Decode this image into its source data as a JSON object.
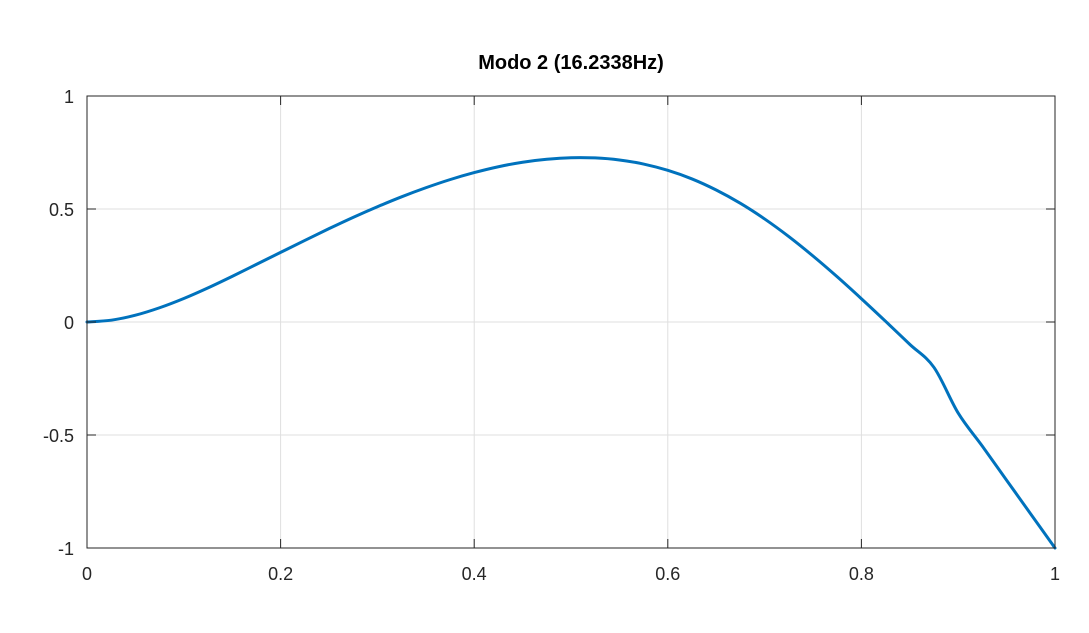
{
  "chart_data": {
    "type": "line",
    "title": "Modo 2 (16.2338Hz)",
    "xlabel": "",
    "ylabel": "",
    "xlim": [
      0,
      1
    ],
    "ylim": [
      -1,
      1
    ],
    "grid": true,
    "legend": "none",
    "x_ticks": [
      0,
      0.2,
      0.4,
      0.6,
      0.8,
      1
    ],
    "x_tick_labels": [
      "0",
      "0.2",
      "0.4",
      "0.6",
      "0.8",
      "1"
    ],
    "y_ticks": [
      1,
      0.5,
      0,
      -0.5,
      -1
    ],
    "y_tick_labels": [
      "1",
      "0.5",
      "0",
      "-0.5",
      "-1"
    ],
    "series": [
      {
        "name": "Modo 2",
        "color": "#0072BD",
        "x": [
          0,
          0.025,
          0.05,
          0.075,
          0.1,
          0.125,
          0.15,
          0.175,
          0.2,
          0.225,
          0.25,
          0.275,
          0.3,
          0.325,
          0.35,
          0.375,
          0.4,
          0.425,
          0.45,
          0.475,
          0.5,
          0.525,
          0.55,
          0.575,
          0.6,
          0.625,
          0.65,
          0.675,
          0.7,
          0.725,
          0.75,
          0.775,
          0.8,
          0.825,
          0.85,
          0.875,
          0.9,
          0.925,
          0.95,
          0.975,
          1
        ],
        "y": [
          0,
          0.008,
          0.03,
          0.063,
          0.104,
          0.151,
          0.202,
          0.255,
          0.308,
          0.361,
          0.413,
          0.463,
          0.51,
          0.554,
          0.594,
          0.63,
          0.661,
          0.687,
          0.707,
          0.72,
          0.727,
          0.726,
          0.717,
          0.699,
          0.671,
          0.633,
          0.584,
          0.525,
          0.456,
          0.378,
          0.292,
          0.2,
          0.103,
          0.003,
          -0.099,
          -0.201,
          -0.403,
          -0.55,
          -0.7,
          -0.85,
          -1
        ]
      }
    ]
  }
}
